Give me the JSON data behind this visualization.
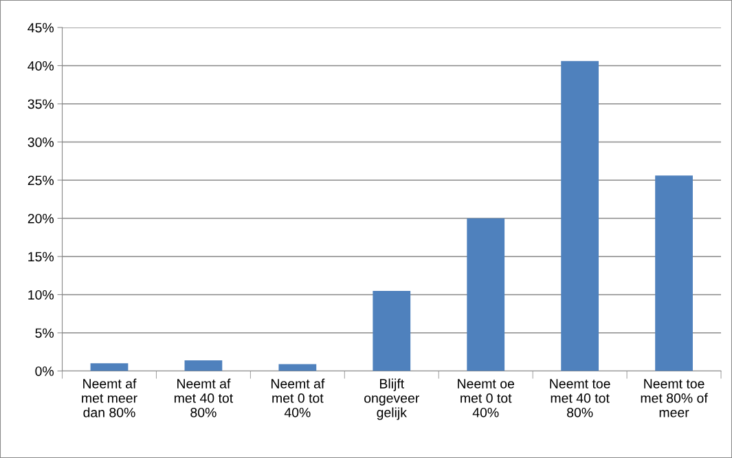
{
  "chart_data": {
    "type": "bar",
    "categories": [
      "Neemt af\nmet meer\ndan 80%",
      "Neemt af\nmet 40 tot\n80%",
      "Neemt af\nmet 0 tot\n40%",
      "Blijft\nongeveer\ngelijk",
      "Neemt oe\nmet 0 tot\n40%",
      "Neemt toe\nmet 40 tot\n80%",
      "Neemt toe\nmet 80% of\nmeer"
    ],
    "values": [
      1.0,
      1.4,
      0.9,
      10.5,
      20.0,
      40.6,
      25.6
    ],
    "color": "#4f81bd",
    "ylim": [
      0,
      45
    ],
    "yticks": [
      {
        "value": 0,
        "label": "0%"
      },
      {
        "value": 5,
        "label": "5%"
      },
      {
        "value": 10,
        "label": "10%"
      },
      {
        "value": 15,
        "label": "15%"
      },
      {
        "value": 20,
        "label": "20%"
      },
      {
        "value": 25,
        "label": "25%"
      },
      {
        "value": 30,
        "label": "30%"
      },
      {
        "value": 35,
        "label": "35%"
      },
      {
        "value": 40,
        "label": "40%"
      },
      {
        "value": 45,
        "label": "45%"
      }
    ],
    "grid": "y"
  }
}
